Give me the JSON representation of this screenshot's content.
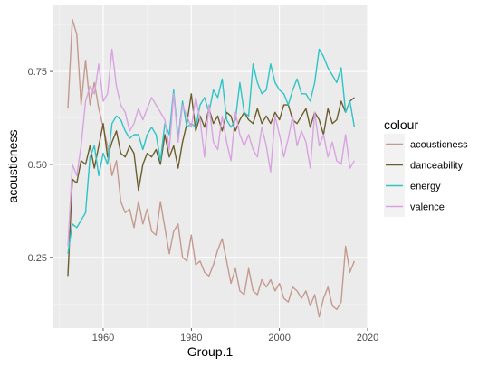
{
  "chart_data": {
    "type": "line",
    "title": "",
    "xlabel": "Group.1",
    "ylabel": "acousticness",
    "xlim": [
      1948.5,
      2020
    ],
    "ylim": [
      0.06,
      0.93
    ],
    "x_ticks": [
      1960,
      1980,
      2000,
      2020
    ],
    "y_ticks": [
      0.25,
      0.5,
      0.75
    ],
    "y_tick_labels": [
      "0.25",
      "0.50",
      "0.75"
    ],
    "grid": true,
    "legend": {
      "title": "colour",
      "position": "right"
    },
    "series": [
      {
        "name": "acousticness",
        "color": "#c49a8f",
        "x": [
          1952,
          1953,
          1954,
          1955,
          1956,
          1957,
          1958,
          1959,
          1960,
          1961,
          1962,
          1963,
          1964,
          1965,
          1966,
          1967,
          1968,
          1969,
          1970,
          1971,
          1972,
          1973,
          1974,
          1975,
          1976,
          1977,
          1978,
          1979,
          1980,
          1981,
          1982,
          1983,
          1984,
          1985,
          1986,
          1987,
          1988,
          1989,
          1990,
          1991,
          1992,
          1993,
          1994,
          1995,
          1996,
          1997,
          1998,
          1999,
          2000,
          2001,
          2002,
          2003,
          2004,
          2005,
          2006,
          2007,
          2008,
          2009,
          2010,
          2011,
          2012,
          2013,
          2014,
          2015,
          2016,
          2017
        ],
        "y": [
          0.65,
          0.89,
          0.85,
          0.66,
          0.78,
          0.66,
          0.72,
          0.65,
          0.6,
          0.55,
          0.47,
          0.51,
          0.4,
          0.37,
          0.38,
          0.33,
          0.4,
          0.34,
          0.38,
          0.32,
          0.31,
          0.4,
          0.33,
          0.26,
          0.32,
          0.34,
          0.25,
          0.24,
          0.31,
          0.23,
          0.24,
          0.21,
          0.2,
          0.23,
          0.27,
          0.3,
          0.24,
          0.18,
          0.22,
          0.16,
          0.15,
          0.22,
          0.16,
          0.15,
          0.19,
          0.17,
          0.19,
          0.16,
          0.18,
          0.14,
          0.13,
          0.17,
          0.16,
          0.14,
          0.16,
          0.12,
          0.15,
          0.09,
          0.14,
          0.17,
          0.12,
          0.11,
          0.13,
          0.28,
          0.21,
          0.24
        ]
      },
      {
        "name": "danceability",
        "color": "#6b5e2e",
        "x": [
          1952,
          1953,
          1954,
          1955,
          1956,
          1957,
          1958,
          1959,
          1960,
          1961,
          1962,
          1963,
          1964,
          1965,
          1966,
          1967,
          1968,
          1969,
          1970,
          1971,
          1972,
          1973,
          1974,
          1975,
          1976,
          1977,
          1978,
          1979,
          1980,
          1981,
          1982,
          1983,
          1984,
          1985,
          1986,
          1987,
          1988,
          1989,
          1990,
          1991,
          1992,
          1993,
          1994,
          1995,
          1996,
          1997,
          1998,
          1999,
          2000,
          2001,
          2002,
          2003,
          2004,
          2005,
          2006,
          2007,
          2008,
          2009,
          2010,
          2011,
          2012,
          2013,
          2014,
          2015,
          2016,
          2017
        ],
        "y": [
          0.2,
          0.46,
          0.45,
          0.51,
          0.5,
          0.55,
          0.49,
          0.55,
          0.61,
          0.52,
          0.56,
          0.59,
          0.53,
          0.52,
          0.55,
          0.53,
          0.43,
          0.5,
          0.53,
          0.52,
          0.54,
          0.5,
          0.58,
          0.52,
          0.55,
          0.49,
          0.56,
          0.61,
          0.69,
          0.59,
          0.63,
          0.6,
          0.65,
          0.61,
          0.63,
          0.59,
          0.64,
          0.63,
          0.59,
          0.62,
          0.64,
          0.62,
          0.61,
          0.65,
          0.61,
          0.63,
          0.61,
          0.64,
          0.62,
          0.66,
          0.66,
          0.62,
          0.61,
          0.63,
          0.65,
          0.6,
          0.64,
          0.62,
          0.58,
          0.65,
          0.61,
          0.62,
          0.67,
          0.64,
          0.67,
          0.68
        ]
      },
      {
        "name": "energy",
        "color": "#2ec4c6",
        "x": [
          1952,
          1953,
          1954,
          1955,
          1956,
          1957,
          1958,
          1959,
          1960,
          1961,
          1962,
          1963,
          1964,
          1965,
          1966,
          1967,
          1968,
          1969,
          1970,
          1971,
          1972,
          1973,
          1974,
          1975,
          1976,
          1977,
          1978,
          1979,
          1980,
          1981,
          1982,
          1983,
          1984,
          1985,
          1986,
          1987,
          1988,
          1989,
          1990,
          1991,
          1992,
          1993,
          1994,
          1995,
          1996,
          1997,
          1998,
          1999,
          2000,
          2001,
          2002,
          2003,
          2004,
          2005,
          2006,
          2007,
          2008,
          2009,
          2010,
          2011,
          2012,
          2013,
          2014,
          2015,
          2016,
          2017
        ],
        "y": [
          0.26,
          0.34,
          0.33,
          0.35,
          0.37,
          0.52,
          0.55,
          0.47,
          0.53,
          0.5,
          0.61,
          0.63,
          0.62,
          0.59,
          0.57,
          0.58,
          0.58,
          0.54,
          0.58,
          0.6,
          0.58,
          0.51,
          0.61,
          0.58,
          0.7,
          0.57,
          0.67,
          0.6,
          0.61,
          0.6,
          0.66,
          0.68,
          0.64,
          0.7,
          0.68,
          0.73,
          0.62,
          0.6,
          0.62,
          0.72,
          0.64,
          0.63,
          0.77,
          0.72,
          0.69,
          0.7,
          0.77,
          0.72,
          0.7,
          0.69,
          0.66,
          0.7,
          0.73,
          0.69,
          0.69,
          0.67,
          0.72,
          0.81,
          0.79,
          0.76,
          0.74,
          0.72,
          0.76,
          0.64,
          0.67,
          0.6
        ]
      },
      {
        "name": "valence",
        "color": "#d9a3e0",
        "x": [
          1952,
          1953,
          1954,
          1955,
          1956,
          1957,
          1958,
          1959,
          1960,
          1961,
          1962,
          1963,
          1964,
          1965,
          1966,
          1967,
          1968,
          1969,
          1970,
          1971,
          1972,
          1973,
          1974,
          1975,
          1976,
          1977,
          1978,
          1979,
          1980,
          1981,
          1982,
          1983,
          1984,
          1985,
          1986,
          1987,
          1988,
          1989,
          1990,
          1991,
          1992,
          1993,
          1994,
          1995,
          1996,
          1997,
          1998,
          1999,
          2000,
          2001,
          2002,
          2003,
          2004,
          2005,
          2006,
          2007,
          2008,
          2009,
          2010,
          2011,
          2012,
          2013,
          2014,
          2015,
          2016,
          2017
        ],
        "y": [
          0.28,
          0.5,
          0.47,
          0.55,
          0.67,
          0.71,
          0.69,
          0.77,
          0.67,
          0.69,
          0.81,
          0.71,
          0.66,
          0.64,
          0.59,
          0.61,
          0.65,
          0.62,
          0.65,
          0.68,
          0.66,
          0.64,
          0.62,
          0.54,
          0.69,
          0.56,
          0.66,
          0.63,
          0.6,
          0.68,
          0.62,
          0.52,
          0.66,
          0.56,
          0.54,
          0.63,
          0.56,
          0.51,
          0.64,
          0.58,
          0.55,
          0.58,
          0.54,
          0.52,
          0.6,
          0.55,
          0.48,
          0.63,
          0.58,
          0.52,
          0.57,
          0.63,
          0.55,
          0.59,
          0.56,
          0.49,
          0.64,
          0.55,
          0.58,
          0.52,
          0.56,
          0.51,
          0.5,
          0.58,
          0.49,
          0.51
        ]
      }
    ]
  }
}
